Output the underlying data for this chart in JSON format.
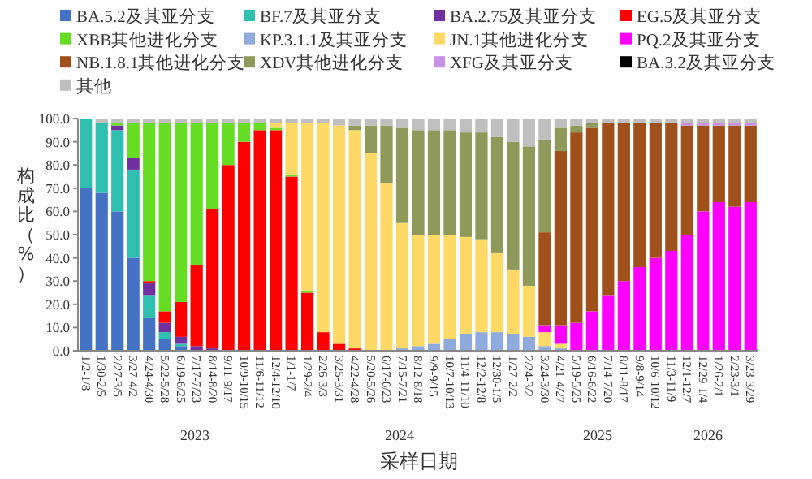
{
  "chart_data": {
    "type": "bar",
    "stacked": true,
    "xlabel": "采样日期",
    "ylabel": "构成比（%）",
    "legend": "top",
    "grid": false,
    "ylim": [
      0,
      100
    ],
    "yticks": [
      {
        "value": 0,
        "label": "0.0"
      },
      {
        "value": 10,
        "label": "10.0"
      },
      {
        "value": 20,
        "label": "20.0"
      },
      {
        "value": 30,
        "label": "30.0"
      },
      {
        "value": 40,
        "label": "40.0"
      },
      {
        "value": 50,
        "label": "50.0"
      },
      {
        "value": 60,
        "label": "60.0"
      },
      {
        "value": 70,
        "label": "70.0"
      },
      {
        "value": 80,
        "label": "80.0"
      },
      {
        "value": 90,
        "label": "90.0"
      },
      {
        "value": 100,
        "label": "100.0"
      }
    ],
    "categories": [
      "1/2-1/8",
      "1/30-2/5",
      "2/27-3/5",
      "3/27-4/2",
      "4/24-4/30",
      "5/22-5/28",
      "6/19-6/25",
      "7/17-7/23",
      "8/14-8/20",
      "9/11-9/17",
      "10/9-10/15",
      "11/6-11/12",
      "12/4-12/10",
      "1/1-1/7",
      "1/29-2/4",
      "2/26-3/3",
      "3/25-3/31",
      "4/22-4/28",
      "5/20-5/26",
      "6/17-6/23",
      "7/15-7/21",
      "8/12-8/18",
      "9/9-9/15",
      "10/7-10/13",
      "11/4-11/10",
      "12/2-12/8",
      "12/30-1/5",
      "1/27-2/2",
      "2/24-3/2",
      "3/24-3/30",
      "4/21-4/27",
      "5/19-5/25",
      "6/16-6/22",
      "7/14-7/20",
      "8/11-8/17",
      "9/8-9/14",
      "10/6-10/12",
      "11/3-11/9",
      "12/1-12/7",
      "12/29-1/4",
      "1/26-2/1",
      "2/23-3/1",
      "3/23-3/29"
    ],
    "annotations": [
      "2023",
      "2024",
      "2025",
      "2026"
    ],
    "series": [
      {
        "name": "BA.5.2及其亚分支",
        "color": "#4472c4",
        "values": [
          70,
          68,
          60,
          40,
          14,
          5,
          2,
          0,
          0,
          0,
          0,
          0,
          0,
          0,
          0,
          0,
          0,
          0,
          0,
          0,
          0,
          0,
          0,
          0,
          0,
          0,
          0,
          0,
          0,
          0,
          0,
          0,
          0,
          0,
          0,
          0,
          0,
          0,
          0,
          0,
          0,
          0,
          0
        ]
      },
      {
        "name": "BF.7及其亚分支",
        "color": "#2ebfae",
        "values": [
          30,
          30,
          35,
          38,
          10,
          3,
          1,
          0,
          0,
          0,
          0,
          0,
          0,
          0,
          0,
          0,
          0,
          0,
          0,
          0,
          0,
          0,
          0,
          0,
          0,
          0,
          0,
          0,
          0,
          0,
          0,
          0,
          0,
          0,
          0,
          0,
          0,
          0,
          0,
          0,
          0,
          0,
          0
        ]
      },
      {
        "name": "BA.2.75及其亚分支",
        "color": "#7030a0",
        "values": [
          0,
          0,
          2,
          5,
          5,
          4,
          3,
          2,
          1,
          0,
          0,
          0,
          0,
          0,
          0,
          0,
          0,
          0,
          0,
          0,
          0,
          0,
          0,
          0,
          0,
          0,
          0,
          0,
          0,
          0,
          0,
          0,
          0,
          0,
          0,
          0,
          0,
          0,
          0,
          0,
          0,
          0,
          0
        ]
      },
      {
        "name": "EG.5及其亚分支",
        "color": "#ff0000",
        "values": [
          0,
          0,
          0,
          0,
          1,
          5,
          15,
          35,
          60,
          80,
          90,
          95,
          95,
          75,
          25,
          8,
          3,
          1,
          0,
          0,
          0,
          0,
          0,
          0,
          0,
          0,
          0,
          0,
          0,
          0,
          0,
          0,
          0,
          0,
          0,
          0,
          0,
          0,
          0,
          0,
          0,
          0,
          0
        ]
      },
      {
        "name": "XBB其他进化分支",
        "color": "#66dd22",
        "values": [
          0,
          0,
          1,
          15,
          68,
          81,
          77,
          61,
          37,
          18,
          8,
          3,
          1,
          1,
          1,
          0,
          0,
          0,
          0,
          0,
          0,
          0,
          0,
          0,
          0,
          0,
          0,
          0,
          0,
          0,
          0,
          0,
          0,
          0,
          0,
          0,
          0,
          0,
          0,
          0,
          0,
          0,
          0
        ]
      },
      {
        "name": "KP.3.1.1及其亚分支",
        "color": "#8faadc",
        "values": [
          0,
          0,
          0,
          0,
          0,
          0,
          0,
          0,
          0,
          0,
          0,
          0,
          0,
          0,
          0,
          0,
          0,
          0,
          0,
          0,
          1,
          2,
          3,
          5,
          7,
          8,
          8,
          7,
          6,
          2,
          1,
          0,
          0,
          0,
          0,
          0,
          0,
          0,
          0,
          0,
          0,
          0,
          0
        ]
      },
      {
        "name": "JN.1其他进化分支",
        "color": "#ffd966",
        "values": [
          0,
          0,
          0,
          0,
          0,
          0,
          0,
          0,
          0,
          0,
          0,
          0,
          2,
          22,
          72,
          90,
          94,
          94,
          85,
          72,
          54,
          48,
          47,
          45,
          42,
          40,
          34,
          28,
          22,
          6,
          2,
          0,
          0,
          0,
          0,
          0,
          0,
          0,
          0,
          0,
          0,
          0,
          0
        ]
      },
      {
        "name": "PQ.2及其亚分支",
        "color": "#ff00ff",
        "values": [
          0,
          0,
          0,
          0,
          0,
          0,
          0,
          0,
          0,
          0,
          0,
          0,
          0,
          0,
          0,
          0,
          0,
          0,
          0,
          0,
          0,
          0,
          0,
          0,
          0,
          0,
          0,
          0,
          0,
          3,
          8,
          12,
          17,
          24,
          30,
          36,
          40,
          43,
          50,
          60,
          64,
          62,
          64
        ]
      },
      {
        "name": "NB.1.8.1其他进化分支",
        "color": "#a0501a",
        "values": [
          0,
          0,
          0,
          0,
          0,
          0,
          0,
          0,
          0,
          0,
          0,
          0,
          0,
          0,
          0,
          0,
          0,
          0,
          0,
          0,
          0,
          0,
          0,
          0,
          0,
          0,
          0,
          0,
          0,
          40,
          75,
          82,
          79,
          74,
          68,
          62,
          58,
          55,
          47,
          37,
          33,
          35,
          33
        ]
      },
      {
        "name": "XDV其他进化分支",
        "color": "#8f9a5a",
        "values": [
          0,
          0,
          0,
          0,
          0,
          0,
          0,
          0,
          0,
          0,
          0,
          0,
          0,
          0,
          0,
          0,
          0,
          2,
          12,
          25,
          41,
          45,
          45,
          45,
          45,
          46,
          50,
          55,
          60,
          40,
          10,
          3,
          2,
          0,
          0,
          0,
          0,
          0,
          0,
          0,
          0,
          0,
          0
        ]
      },
      {
        "name": "XFG及其亚分支",
        "color": "#c890e8",
        "values": [
          0,
          0,
          0,
          0,
          0,
          0,
          0,
          0,
          0,
          0,
          0,
          0,
          0,
          0,
          0,
          0,
          0,
          0,
          0,
          0,
          0,
          0,
          0,
          0,
          0,
          0,
          0,
          0,
          0,
          0,
          0,
          0,
          0,
          0,
          0,
          0,
          0,
          0,
          1,
          1,
          1,
          1,
          1
        ]
      },
      {
        "name": "BA.3.2及其亚分支",
        "color": "#000000",
        "values": [
          0,
          0,
          0,
          0,
          0,
          0,
          0,
          0,
          0,
          0,
          0,
          0,
          0,
          0,
          0,
          0,
          0,
          0,
          0,
          0,
          0,
          0,
          0,
          0,
          0,
          0,
          0,
          0,
          0,
          0,
          0,
          0,
          0,
          0,
          0,
          0,
          0,
          0,
          0,
          0,
          0,
          0,
          0
        ]
      },
      {
        "name": "其他",
        "color": "#bfbfbf",
        "values": [
          0,
          2,
          2,
          2,
          2,
          2,
          2,
          2,
          2,
          2,
          2,
          2,
          2,
          2,
          2,
          2,
          3,
          3,
          3,
          3,
          4,
          5,
          5,
          5,
          6,
          6,
          8,
          10,
          12,
          9,
          4,
          3,
          2,
          2,
          2,
          2,
          2,
          2,
          2,
          2,
          2,
          2,
          2
        ]
      }
    ]
  }
}
